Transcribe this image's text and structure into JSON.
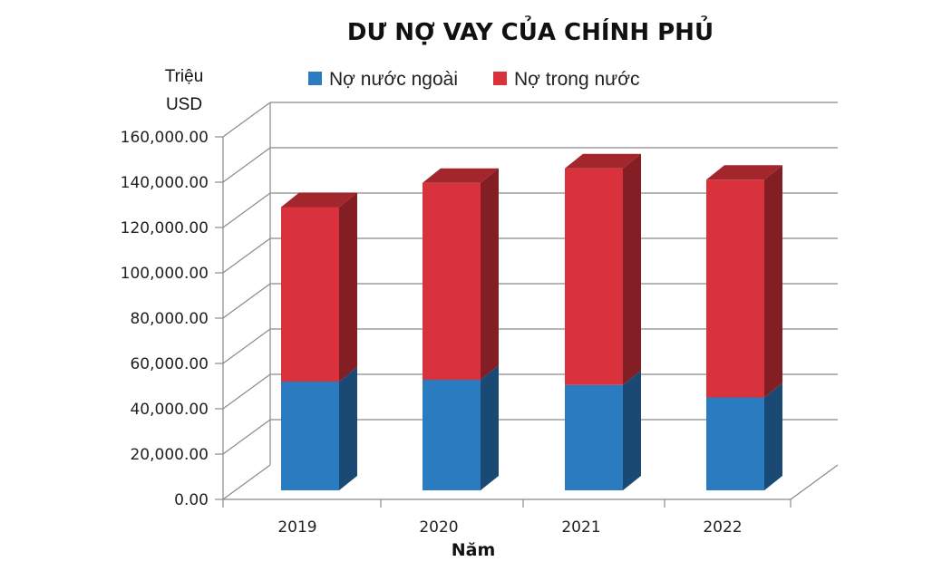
{
  "chart_data": {
    "type": "bar",
    "stacked": true,
    "three_d": true,
    "title": "DƯ NỢ VAY CỦA CHÍNH PHỦ",
    "ylabel_lines": [
      "Triệu",
      "USD"
    ],
    "xlabel": "Năm",
    "categories": [
      "2019",
      "2020",
      "2021",
      "2022"
    ],
    "series": [
      {
        "name": "Nợ nước ngoài",
        "color": "#2b7bc0",
        "values": [
          48000,
          48800,
          46500,
          41000
        ]
      },
      {
        "name": "Nợ trong nước",
        "color": "#d9323c",
        "values": [
          77000,
          86900,
          95600,
          96100
        ]
      }
    ],
    "ylim": [
      0,
      160000
    ],
    "ytick_step": 20000,
    "yticks": [
      "0.00",
      "20,000.00",
      "40,000.00",
      "60,000.00",
      "80,000.00",
      "100,000.00",
      "120,000.00",
      "140,000.00",
      "160,000.00"
    ],
    "grid": true,
    "legend_position": "top"
  }
}
